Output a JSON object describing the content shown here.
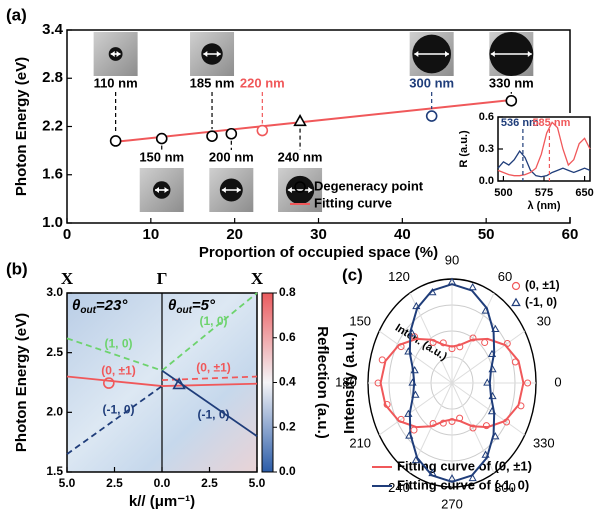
{
  "chart_data": [
    {
      "type": "scatter",
      "panel_label": "(a)",
      "xlabel": "Proportion of occupied space (%)",
      "ylabel": "Photon Energy (eV)",
      "xlim": [
        0,
        60
      ],
      "xticks": [
        0,
        10,
        20,
        30,
        40,
        50,
        60
      ],
      "ylim": [
        1.0,
        3.4
      ],
      "yticks": [
        {
          "value": 1.0,
          "label": "1.0"
        },
        1.6,
        2.2,
        2.8,
        3.4
      ],
      "points": {
        "name": "Degeneracy point",
        "x": [
          5.8,
          11.3,
          17.3,
          19.6,
          23.3,
          27.8,
          43.5,
          53.0
        ],
        "y": [
          2.02,
          2.05,
          2.08,
          2.11,
          2.15,
          2.26,
          2.33,
          2.52
        ],
        "labels": [
          "110 nm",
          "150 nm",
          "185 nm",
          "200 nm",
          "220 nm",
          "240 nm",
          "300 nm",
          "330 nm"
        ],
        "colors": [
          "#000000",
          "#000000",
          "#000000",
          "#000000",
          "#f0585a",
          "#000000",
          "#1f3d7a",
          "#000000"
        ],
        "markers": [
          "circle",
          "circle",
          "circle",
          "circle",
          "circle",
          "triangle",
          "circle",
          "circle"
        ]
      },
      "fit": {
        "name": "Fitting curve",
        "color": "#f0585a",
        "x": [
          5.8,
          53.0
        ],
        "y": [
          2.01,
          2.53
        ]
      }
    },
    {
      "type": "line",
      "xlabel": "λ (nm)",
      "ylabel": "R (a.u.)",
      "xlim": [
        490,
        660
      ],
      "xticks": [
        500,
        575,
        650
      ],
      "ylim": [
        0,
        0.6
      ],
      "yticks": [
        {
          "value": 0,
          "label": "0.0"
        },
        0.3,
        0.6
      ],
      "x": [
        490,
        500,
        510,
        520,
        530,
        540,
        550,
        560,
        570,
        580,
        590,
        600,
        610,
        620,
        630,
        640,
        650,
        660
      ],
      "series": [
        {
          "color": "#1f3d7a",
          "values": [
            0.12,
            0.18,
            0.15,
            0.2,
            0.28,
            0.22,
            0.1,
            0.05,
            0.04,
            0.05,
            0.08,
            0.1,
            0.12,
            0.1,
            0.08,
            0.1,
            0.12,
            0.1
          ]
        },
        {
          "color": "#f0585a",
          "values": [
            0.1,
            0.08,
            0.06,
            0.05,
            0.05,
            0.06,
            0.08,
            0.12,
            0.25,
            0.45,
            0.55,
            0.5,
            0.3,
            0.15,
            0.2,
            0.35,
            0.4,
            0.3
          ]
        }
      ],
      "annotations": [
        {
          "x": 536,
          "text": "536 nm",
          "color": "#1f3d7a"
        },
        {
          "x": 585,
          "text": "585 nm",
          "color": "#f0585a"
        }
      ]
    },
    {
      "type": "dispersion",
      "panel_label": "(b)",
      "xlabel": "k// (μm⁻¹)",
      "ylabel": "Photon Energy (eV)",
      "xlim": [
        -5,
        5
      ],
      "xticks": [
        {
          "value": -5,
          "label": "5.0"
        },
        {
          "value": -2.5,
          "label": "2.5"
        },
        {
          "value": 0,
          "label": "0.0"
        },
        {
          "value": 2.5,
          "label": "2.5"
        },
        {
          "value": 5,
          "label": "5.0"
        }
      ],
      "ylim": [
        1.5,
        3.0
      ],
      "yticks": [
        1.5,
        {
          "value": 2.0,
          "label": "2.0"
        },
        2.5,
        {
          "value": 3.0,
          "label": "3.0"
        }
      ],
      "top_labels": [
        {
          "value": -5,
          "label": "X"
        },
        {
          "value": 0,
          "label": "Γ"
        },
        {
          "value": 5,
          "label": "X"
        }
      ],
      "subtitles": [
        {
          "main": "θ",
          "sub": "out",
          "rest": "=23°"
        },
        {
          "main": "θ",
          "sub": "out",
          "rest": "=5°"
        }
      ],
      "colorbar": {
        "label": "Reflection (a.u.)",
        "lim": [
          0,
          0.8
        ],
        "ticks": [
          {
            "value": 0,
            "label": "0.0"
          },
          0.2,
          0.4,
          0.6,
          0.8
        ]
      },
      "series": [
        {
          "name": "(1, 0)",
          "color": "#6dd36d",
          "dash": true,
          "x": [
            -5,
            0
          ],
          "y": [
            2.62,
            2.35
          ]
        },
        {
          "name": "(0, ±1)",
          "color": "#f0585a",
          "dash": false,
          "x": [
            -5,
            0
          ],
          "y": [
            2.3,
            2.22
          ]
        },
        {
          "name": "(-1, 0)",
          "color": "#1f3d7a",
          "dash": true,
          "x": [
            -5,
            0
          ],
          "y": [
            1.65,
            2.22
          ]
        },
        {
          "name": "(1, 0)",
          "color": "#6dd36d",
          "dash": true,
          "x": [
            0,
            5
          ],
          "y": [
            2.35,
            3.0
          ]
        },
        {
          "name": "(0, ±1)",
          "color": "#f0585a",
          "dash": true,
          "x": [
            0,
            5
          ],
          "y": [
            2.27,
            2.3
          ]
        },
        {
          "color": "#f0585a",
          "dash": false,
          "x": [
            0,
            5
          ],
          "y": [
            2.22,
            2.24
          ]
        },
        {
          "name": "(-1, 0)",
          "color": "#1f3d7a",
          "dash": false,
          "x": [
            0,
            5
          ],
          "y": [
            2.35,
            1.8
          ]
        }
      ],
      "points": [
        {
          "x": -2.8,
          "y": 2.245,
          "marker": "circle",
          "color": "#f0585a"
        },
        {
          "x": 0.9,
          "y": 2.23,
          "marker": "triangle",
          "color": "#1f3d7a"
        }
      ]
    },
    {
      "type": "polar",
      "panel_label": "(c)",
      "ylabel": "Intensity (a.u.)",
      "radial_label": "Inten. (a.u.)",
      "theta_ticks": [
        0,
        30,
        60,
        90,
        120,
        150,
        180,
        210,
        240,
        270,
        300,
        330
      ],
      "rlim": [
        0,
        1
      ],
      "theta": [
        0,
        15,
        30,
        45,
        60,
        75,
        90,
        105,
        120,
        135,
        150,
        165,
        180,
        195,
        210,
        225,
        240,
        255,
        270,
        285,
        300,
        315,
        330,
        345
      ],
      "series": [
        {
          "name": "(0, ±1)",
          "color": "#f0585a",
          "marker": "circle",
          "values": [
            0.9,
            0.78,
            0.76,
            0.55,
            0.5,
            0.36,
            0.33,
            0.4,
            0.45,
            0.63,
            0.7,
            0.86,
            0.88,
            0.8,
            0.7,
            0.64,
            0.45,
            0.4,
            0.37,
            0.35,
            0.5,
            0.58,
            0.75,
            0.85
          ]
        },
        {
          "name": "(-1, 0)",
          "color": "#1f3d7a",
          "marker": "triangle",
          "values": [
            0.42,
            0.5,
            0.55,
            0.73,
            0.8,
            0.95,
            0.97,
            0.9,
            0.85,
            0.67,
            0.6,
            0.46,
            0.47,
            0.45,
            0.6,
            0.72,
            0.86,
            0.9,
            0.92,
            0.95,
            0.8,
            0.73,
            0.55,
            0.5
          ]
        }
      ],
      "fits": [
        {
          "name": "Fitting curve of (0, ±1)",
          "color": "#f0585a",
          "values": [
            0.85,
            0.82,
            0.73,
            0.6,
            0.48,
            0.38,
            0.35,
            0.38,
            0.48,
            0.6,
            0.73,
            0.82,
            0.85,
            0.82,
            0.73,
            0.6,
            0.48,
            0.38,
            0.35,
            0.38,
            0.48,
            0.6,
            0.73,
            0.82
          ]
        },
        {
          "name": "Fitting curve of (-1, 0)",
          "color": "#1f3d7a",
          "values": [
            0.45,
            0.48,
            0.58,
            0.7,
            0.83,
            0.92,
            0.95,
            0.92,
            0.83,
            0.7,
            0.58,
            0.48,
            0.45,
            0.48,
            0.58,
            0.7,
            0.83,
            0.92,
            0.95,
            0.92,
            0.83,
            0.7,
            0.58,
            0.48
          ]
        }
      ]
    }
  ]
}
